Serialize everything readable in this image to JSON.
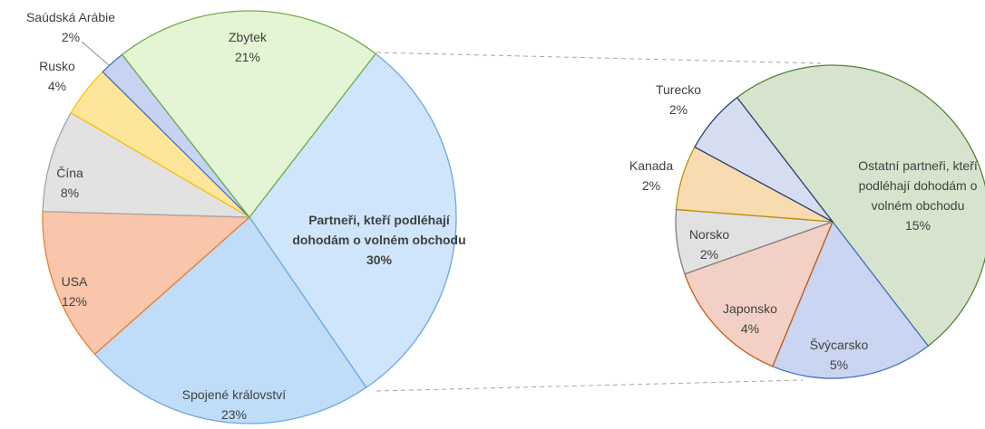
{
  "chart_data": [
    {
      "type": "pie",
      "categories": [
        "Partneři, kteří podléhají dohodám o volném obchodu",
        "Spojené království",
        "USA",
        "Čína",
        "Rusko",
        "Saúdská Arábie",
        "Zbytek"
      ],
      "values": [
        30,
        23,
        12,
        8,
        4,
        2,
        21
      ],
      "value_labels": [
        "30%",
        "23%",
        "12%",
        "8%",
        "4%",
        "2%",
        "21%"
      ],
      "colors": [
        "#cfe5fb",
        "#bfdcf9",
        "#f9c6ab",
        "#e2e2e2",
        "#fde69a",
        "#c6d3f3",
        "#e3f5d4"
      ],
      "stroke_colors": [
        "#6fa8dc",
        "#6fa8dc",
        "#ed7d31",
        "#a5a5a5",
        "#ffc000",
        "#4472c4",
        "#70ad47"
      ]
    },
    {
      "type": "pie",
      "categories": [
        "Ostatní partneři, kteří podléhají dohodám o volném obchodu",
        "Švýcarsko",
        "Japonsko",
        "Norsko",
        "Kanada",
        "Turecko"
      ],
      "values": [
        15,
        5,
        4,
        2,
        2,
        2
      ],
      "value_labels": [
        "15%",
        "5%",
        "4%",
        "2%",
        "2%",
        "2%"
      ],
      "colors": [
        "#d6e4cd",
        "#c9d5f1",
        "#f3d0c5",
        "#e1e1e1",
        "#f8dcb1",
        "#d7ddf0"
      ],
      "stroke_colors": [
        "#548235",
        "#4472c4",
        "#c55a11",
        "#7f7f7f",
        "#bf8f00",
        "#264478"
      ]
    }
  ]
}
